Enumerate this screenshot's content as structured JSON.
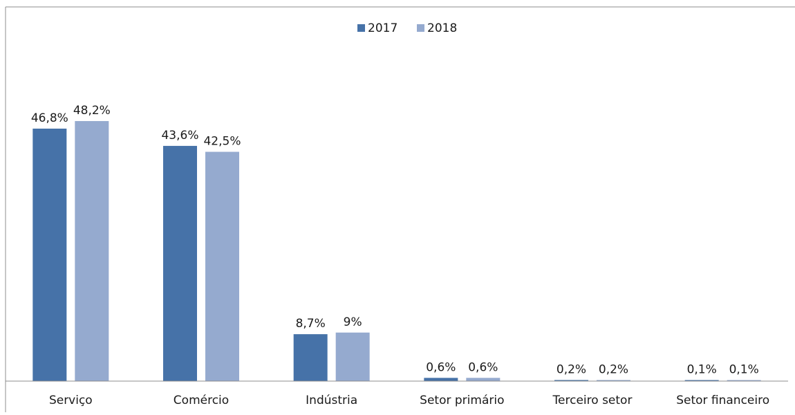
{
  "chart_data": {
    "type": "bar",
    "title": "",
    "xlabel": "",
    "ylabel": "",
    "categories": [
      "Serviço",
      "Comércio",
      "Indústria",
      "Setor primário",
      "Terceiro setor",
      "Setor financeiro"
    ],
    "series": [
      {
        "name": "2017",
        "color": "#4672A8",
        "values": [
          46.8,
          43.6,
          8.7,
          0.6,
          0.2,
          0.1
        ],
        "labels": [
          "46,8%",
          "43,6%",
          "8,7%",
          "0,6%",
          "0,2%",
          "0,1%"
        ]
      },
      {
        "name": "2018",
        "color": "#95AACF",
        "values": [
          48.2,
          42.5,
          9.0,
          0.6,
          0.2,
          0.1
        ],
        "labels": [
          "48,2%",
          "42,5%",
          "9%",
          "0,6%",
          "0,2%",
          "0,1%"
        ]
      }
    ],
    "ylim": [
      0,
      50
    ],
    "legend_position": "top-center",
    "grid": false,
    "axis_color": "#8c8c8c"
  }
}
